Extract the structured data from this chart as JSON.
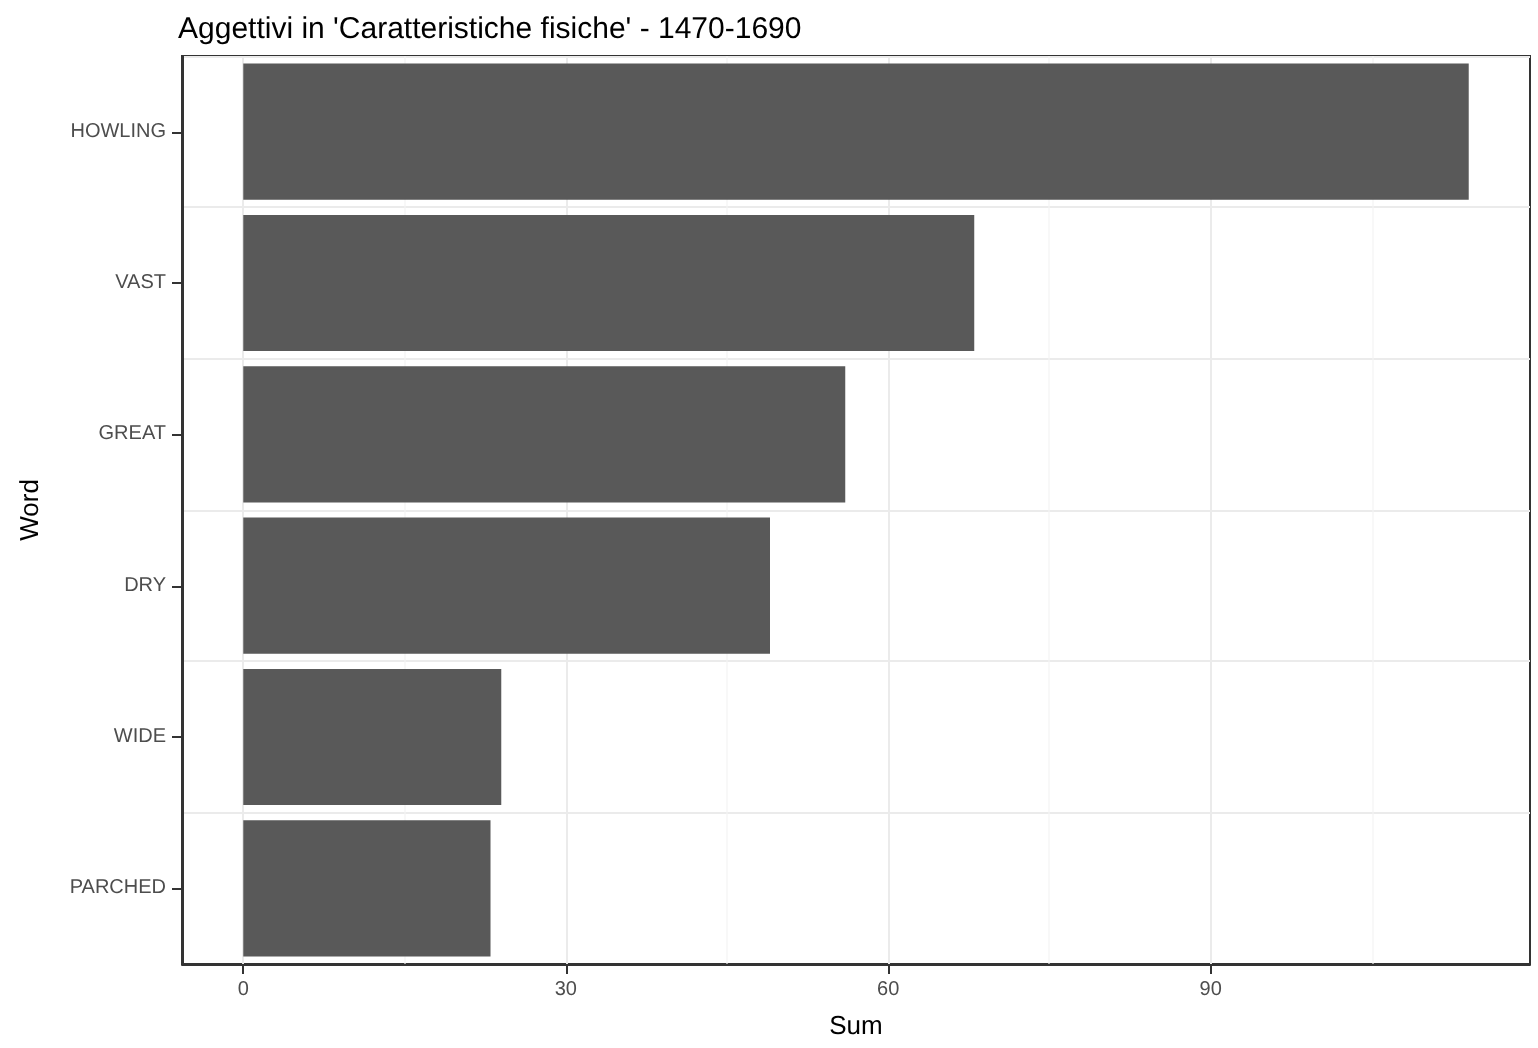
{
  "chart_data": {
    "type": "bar",
    "orientation": "horizontal",
    "title": "Aggettivi in 'Caratteristiche fisiche' - 1470-1690",
    "xlabel": "Sum",
    "ylabel": "Word",
    "categories": [
      "HOWLING",
      "VAST",
      "GREAT",
      "DRY",
      "WIDE",
      "PARCHED"
    ],
    "values": [
      114,
      68,
      56,
      49,
      24,
      23
    ],
    "color": "#595959",
    "xlim": [
      -5.7,
      119.7
    ],
    "xticks": [
      0,
      30,
      60,
      90
    ],
    "grid": true
  }
}
